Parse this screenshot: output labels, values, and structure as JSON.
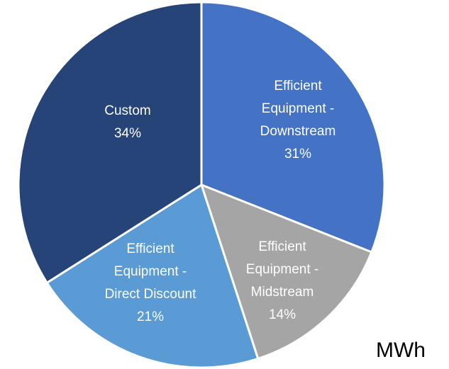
{
  "chart_data": {
    "type": "pie",
    "title": "MWh",
    "categories": [
      "Efficient Equipment - Downstream",
      "Efficient Equipment - Midstream",
      "Efficient Equipment - Direct Discount",
      "Custom"
    ],
    "values": [
      31,
      14,
      21,
      34
    ],
    "value_labels": [
      "31%",
      "14%",
      "21%",
      "34%"
    ],
    "colors": [
      "#4472c4",
      "#a5a5a5",
      "#5b9bd5",
      "#264478"
    ]
  }
}
